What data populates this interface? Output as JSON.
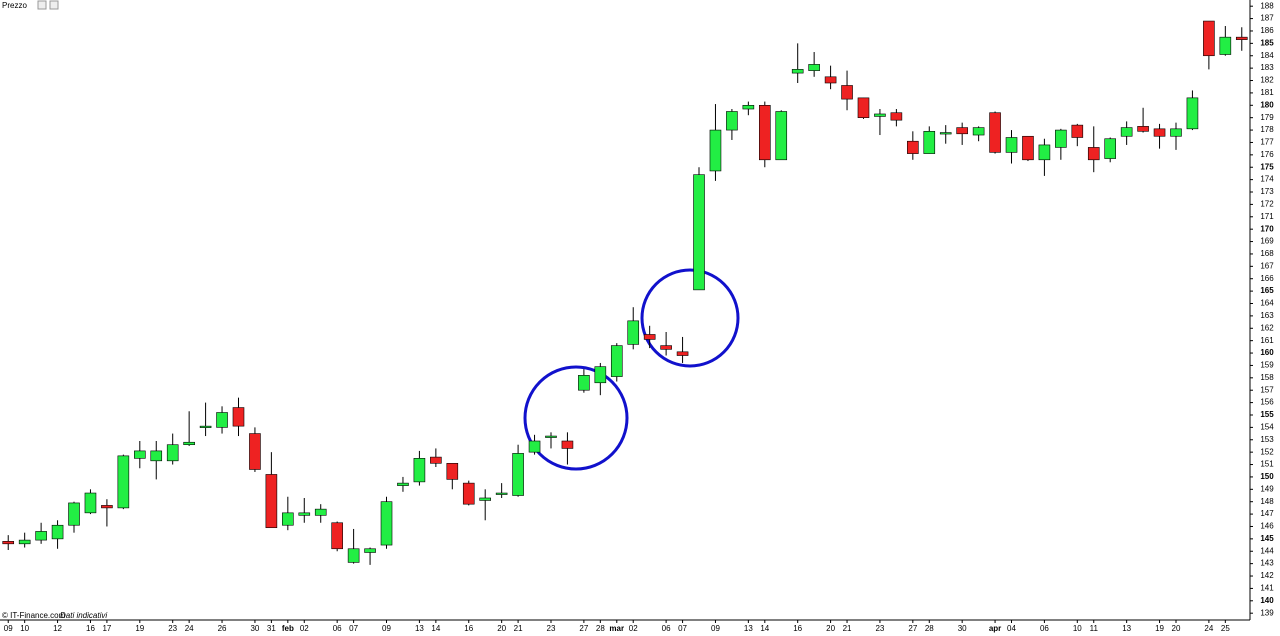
{
  "chart_data": {
    "type": "candlestick",
    "title": "Prezzo",
    "source": "© IT-Finance.com",
    "note": "Dati indicativi",
    "categories": [
      "09",
      "10",
      null,
      "12",
      null,
      "16",
      "17",
      null,
      "19",
      null,
      "23",
      "24",
      null,
      "26",
      null,
      "30",
      "31",
      "feb",
      "02",
      null,
      "06",
      "07",
      null,
      "09",
      null,
      "13",
      "14",
      null,
      "16",
      null,
      "20",
      "21",
      null,
      "23",
      null,
      "27",
      "28",
      "mar",
      "02",
      null,
      "06",
      "07",
      null,
      "09",
      null,
      "13",
      "14",
      null,
      "16",
      null,
      "20",
      "21",
      null,
      "23",
      null,
      "27",
      "28",
      null,
      "30",
      null,
      "apr",
      "04",
      null,
      "06",
      null,
      "10",
      "11",
      null,
      "13",
      null,
      "19",
      "20",
      null,
      "24",
      "25",
      null
    ],
    "open": [
      144.8,
      144.6,
      144.9,
      145,
      146.1,
      147.1,
      147.7,
      147.5,
      151.5,
      151.3,
      151.3,
      152.6,
      154,
      154,
      155.6,
      153.5,
      150.2,
      146.1,
      146.9,
      146.9,
      146.3,
      143.1,
      143.9,
      144.5,
      149.3,
      149.6,
      151.6,
      151.1,
      149.5,
      148.1,
      148.6,
      148.5,
      152,
      153.3,
      152.9,
      157,
      157.6,
      158.1,
      160.7,
      161.5,
      160.6,
      160.1,
      165.1,
      174.7,
      178,
      179.7,
      180,
      175.6,
      182.6,
      182.8,
      182.3,
      181.6,
      180.6,
      179.1,
      179.4,
      177.1,
      176.1,
      177.8,
      178.2,
      177.6,
      179.4,
      176.2,
      177.5,
      175.6,
      176.6,
      178.4,
      176.6,
      175.7,
      177.5,
      178.3,
      178.1,
      177.5,
      178.1,
      186.8,
      184.1,
      185.5
    ],
    "high": [
      145.3,
      145.5,
      146.3,
      146.5,
      148,
      149,
      148.2,
      151.8,
      152.9,
      152.9,
      153.5,
      155.3,
      156,
      155.7,
      156.4,
      154,
      152,
      148.4,
      148.3,
      147.8,
      146.4,
      145.8,
      144.3,
      148.4,
      150,
      152.1,
      152.3,
      151.1,
      149.7,
      149,
      149.5,
      152.6,
      153.4,
      153.6,
      153.6,
      158.7,
      159.2,
      160.8,
      163.7,
      162.2,
      161.7,
      161.3,
      175,
      180.1,
      179.7,
      180.3,
      180.3,
      179.6,
      185,
      184.3,
      183.2,
      182.8,
      180.6,
      179.7,
      179.7,
      177.9,
      178.3,
      178.4,
      178.6,
      178.3,
      179.5,
      178,
      177.5,
      177.3,
      178.1,
      178.5,
      178.3,
      177.4,
      178.7,
      179.8,
      178.5,
      178.6,
      181.2,
      186.8,
      186.4,
      186.3
    ],
    "low": [
      144.1,
      144.3,
      144.6,
      144.2,
      145.5,
      147,
      146,
      147.4,
      150.7,
      149.8,
      151,
      152.5,
      153.3,
      153.5,
      153.3,
      150.4,
      145.9,
      145.7,
      146.3,
      146.3,
      144,
      143,
      142.9,
      144.2,
      148.8,
      149.3,
      150.8,
      149,
      147.7,
      146.5,
      148.3,
      148.4,
      151.8,
      152.3,
      151,
      156.8,
      156.6,
      157.7,
      160.3,
      160.4,
      159.8,
      159.2,
      165.1,
      173.9,
      177.2,
      179.2,
      175,
      175.6,
      181.8,
      182.3,
      181.3,
      179.6,
      178.9,
      177.6,
      178.3,
      175.6,
      176.1,
      176.9,
      176.8,
      177.1,
      176.1,
      175.3,
      175.5,
      174.3,
      175.6,
      176.7,
      174.6,
      175.4,
      176.8,
      177.8,
      176.5,
      176.4,
      178,
      182.9,
      184,
      184.4
    ],
    "close": [
      144.6,
      144.9,
      145.6,
      146.1,
      147.9,
      148.7,
      147.5,
      151.7,
      152.1,
      152.1,
      152.6,
      152.8,
      154.1,
      155.2,
      154.1,
      150.6,
      145.9,
      147.1,
      147.1,
      147.4,
      144.2,
      144.2,
      144.2,
      148,
      149.5,
      151.5,
      151.1,
      149.8,
      147.8,
      148.3,
      148.7,
      151.9,
      152.9,
      153.3,
      152.3,
      158.2,
      158.9,
      160.6,
      162.6,
      161.1,
      160.3,
      159.8,
      174.4,
      178,
      179.5,
      180,
      175.6,
      179.5,
      182.9,
      183.3,
      181.8,
      180.5,
      179,
      179.3,
      178.8,
      176.1,
      177.9,
      177.8,
      177.7,
      178.2,
      176.2,
      177.4,
      175.6,
      176.8,
      178,
      177.4,
      175.6,
      177.3,
      178.2,
      177.9,
      177.5,
      178.1,
      180.6,
      184,
      185.5,
      185.3
    ],
    "up_color": "#22ee44",
    "down_color": "#ee2222",
    "ylim": [
      138.45,
      188.5
    ],
    "yticks": [
      139,
      140,
      141,
      142,
      143,
      144,
      145,
      146,
      147,
      148,
      149,
      150,
      151,
      152,
      153,
      154,
      155,
      156,
      157,
      158,
      159,
      160,
      161,
      162,
      163,
      164,
      165,
      166,
      167,
      168,
      169,
      170,
      171,
      172,
      173,
      174,
      175,
      176,
      177,
      178,
      179,
      180,
      181,
      182,
      183,
      184,
      185,
      186,
      187,
      188
    ],
    "grid": false
  }
}
